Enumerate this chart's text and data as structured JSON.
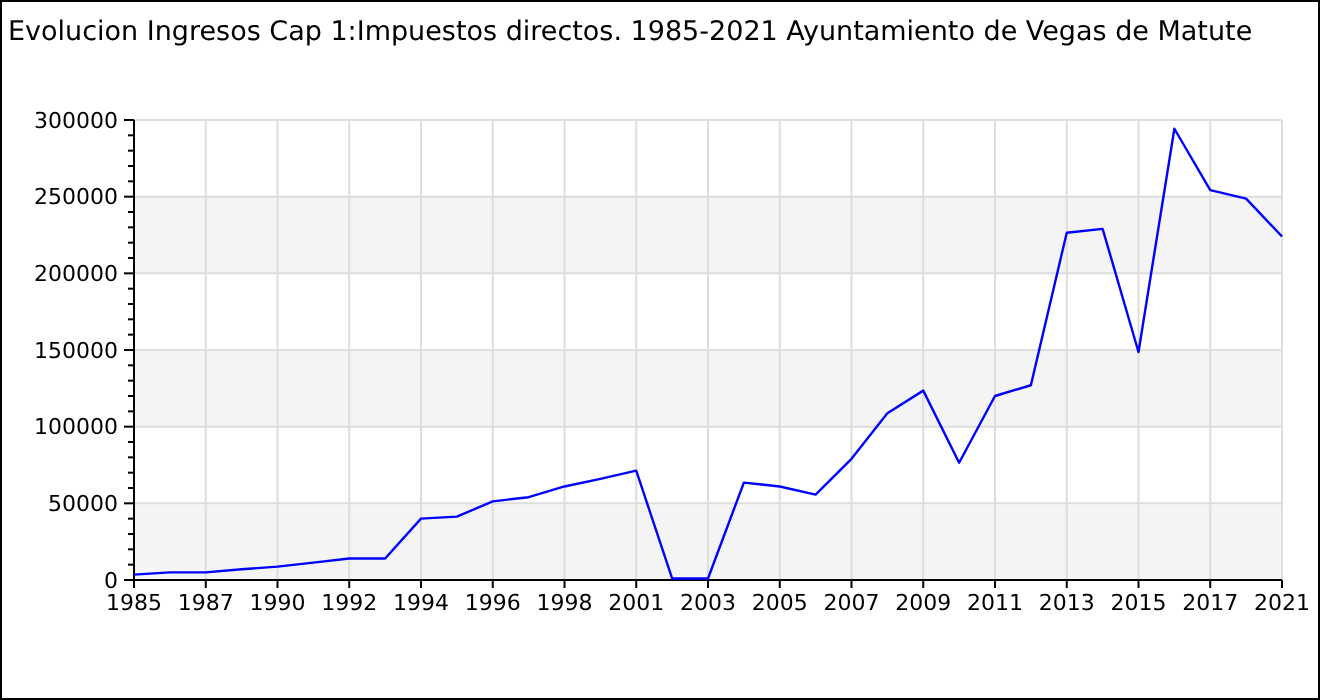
{
  "chart_data": {
    "type": "line",
    "title": "Evolucion Ingresos Cap 1:Impuestos directos. 1985-2021 Ayuntamiento de Vegas de Matute",
    "categories": [
      "1985",
      null,
      "1987",
      null,
      "1990",
      null,
      "1992",
      null,
      "1994",
      null,
      "1996",
      null,
      "1998",
      null,
      "2001",
      null,
      "2003",
      null,
      "2005",
      null,
      "2007",
      null,
      "2009",
      null,
      "2011",
      null,
      "2013",
      null,
      "2015",
      null,
      "2017",
      null,
      "2021"
    ],
    "series": [
      {
        "color": "#0000ff",
        "values": [
          3500,
          5000,
          5000,
          7000,
          8700,
          11300,
          14000,
          14000,
          40000,
          41300,
          51300,
          54000,
          61000,
          66000,
          71300,
          1000,
          1000,
          63500,
          61000,
          55700,
          79000,
          108700,
          123500,
          76500,
          120000,
          127000,
          226500,
          229000,
          148700,
          294300,
          254300,
          248700,
          224000
        ]
      }
    ],
    "ylim": [
      0,
      300000
    ],
    "yticks": [
      0,
      50000,
      100000,
      150000,
      200000,
      250000,
      300000
    ],
    "grid": true,
    "marker": "none",
    "line_style": "solid"
  }
}
